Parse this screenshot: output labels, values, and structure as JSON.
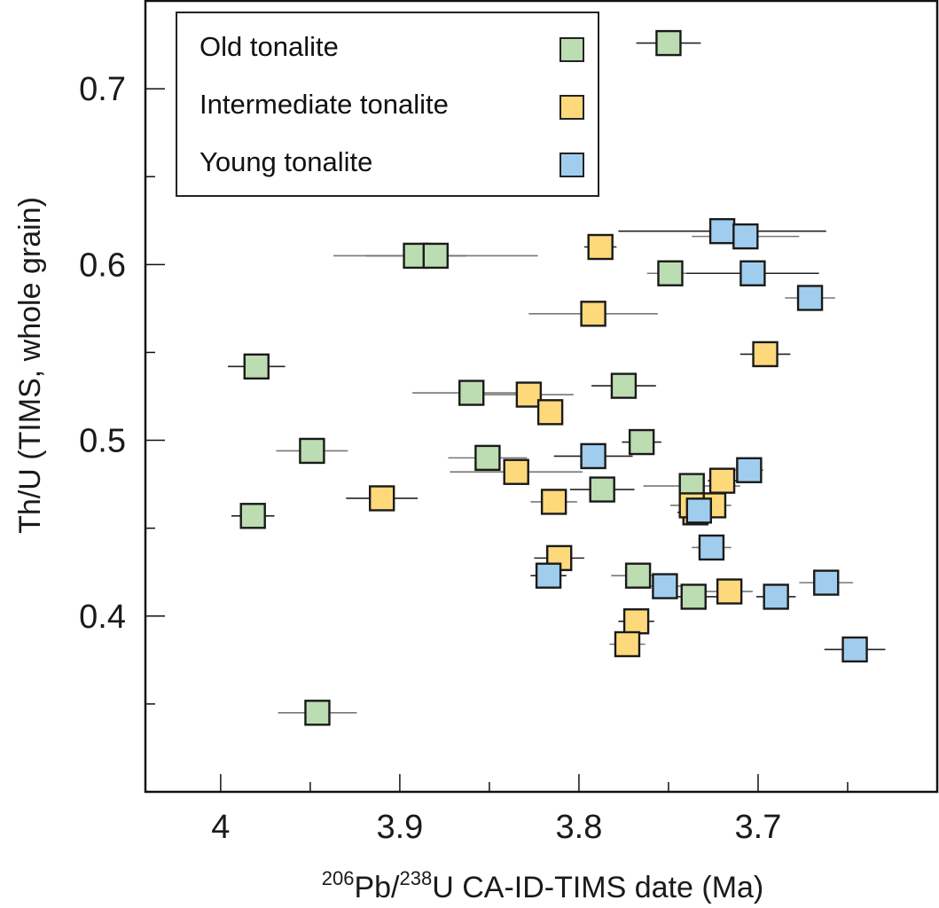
{
  "chart_data": {
    "type": "scatter",
    "title": "",
    "xlabel": {
      "sup1": "206",
      "part1": "Pb/",
      "sup2": "238",
      "part2": "U CA-ID-TIMS date (Ma)"
    },
    "ylabel": "Th/U (TIMS, whole grain)",
    "xlim": [
      4.042,
      3.6
    ],
    "ylim": [
      0.3,
      0.75
    ],
    "x_reversed": true,
    "grid": false,
    "x_ticks": [
      {
        "value": 4.0,
        "label": "4"
      },
      {
        "value": 3.9,
        "label": "3.9"
      },
      {
        "value": 3.8,
        "label": "3.8"
      },
      {
        "value": 3.7,
        "label": "3.7"
      }
    ],
    "x_minor_ticks": [
      3.95,
      3.85,
      3.75,
      3.65
    ],
    "y_ticks": [
      {
        "value": 0.7,
        "label": "0.7"
      },
      {
        "value": 0.6,
        "label": "0.6"
      },
      {
        "value": 0.5,
        "label": "0.5"
      },
      {
        "value": 0.4,
        "label": "0.4"
      }
    ],
    "y_minor_ticks": [
      0.65,
      0.55,
      0.45,
      0.35
    ],
    "legend_position": "top-left",
    "series": [
      {
        "name": "Old tonalite",
        "color": "#bcdcb1",
        "points": [
          {
            "x": 3.891,
            "y": 0.605,
            "xerr": 0.028
          },
          {
            "x": 3.88,
            "y": 0.605,
            "xerr": 0.057
          },
          {
            "x": 3.75,
            "y": 0.726,
            "xerr": 0.018
          },
          {
            "x": 3.749,
            "y": 0.595,
            "xerr": 0.013
          },
          {
            "x": 3.98,
            "y": 0.542,
            "xerr": 0.016
          },
          {
            "x": 3.86,
            "y": 0.527,
            "xerr": 0.033
          },
          {
            "x": 3.775,
            "y": 0.531,
            "xerr": 0.018
          },
          {
            "x": 3.949,
            "y": 0.494,
            "xerr": 0.02
          },
          {
            "x": 3.765,
            "y": 0.499,
            "xerr": 0.011
          },
          {
            "x": 3.851,
            "y": 0.49,
            "xerr": 0.022
          },
          {
            "x": 3.787,
            "y": 0.472,
            "xerr": 0.018
          },
          {
            "x": 3.737,
            "y": 0.474,
            "xerr": 0.027
          },
          {
            "x": 3.982,
            "y": 0.457,
            "xerr": 0.012
          },
          {
            "x": 3.767,
            "y": 0.423,
            "xerr": 0.015
          },
          {
            "x": 3.736,
            "y": 0.411,
            "xerr": 0.017
          },
          {
            "x": 3.946,
            "y": 0.345,
            "xerr": 0.022
          }
        ]
      },
      {
        "name": "Intermediate tonalite",
        "color": "#fed97b",
        "points": [
          {
            "x": 3.788,
            "y": 0.61,
            "xerr": 0.009
          },
          {
            "x": 3.792,
            "y": 0.572,
            "xerr": 0.036
          },
          {
            "x": 3.696,
            "y": 0.549,
            "xerr": 0.014
          },
          {
            "x": 3.828,
            "y": 0.526,
            "xerr": 0.025
          },
          {
            "x": 3.816,
            "y": 0.516,
            "xerr": 0.005
          },
          {
            "x": 3.835,
            "y": 0.482,
            "xerr": 0.037
          },
          {
            "x": 3.91,
            "y": 0.467,
            "xerr": 0.02
          },
          {
            "x": 3.814,
            "y": 0.465,
            "xerr": 0.013
          },
          {
            "x": 3.72,
            "y": 0.477,
            "xerr": 0.008
          },
          {
            "x": 3.725,
            "y": 0.463,
            "xerr": 0.01
          },
          {
            "x": 3.735,
            "y": 0.459,
            "xerr": 0.01
          },
          {
            "x": 3.737,
            "y": 0.463,
            "xerr": 0.012
          },
          {
            "x": 3.811,
            "y": 0.433,
            "xerr": 0.014
          },
          {
            "x": 3.716,
            "y": 0.414,
            "xerr": 0.013
          },
          {
            "x": 3.768,
            "y": 0.397,
            "xerr": 0.01
          },
          {
            "x": 3.773,
            "y": 0.384,
            "xerr": 0.01
          }
        ]
      },
      {
        "name": "Young tonalite",
        "color": "#a0cdee",
        "points": [
          {
            "x": 3.72,
            "y": 0.619,
            "xerr": 0.058
          },
          {
            "x": 3.707,
            "y": 0.616,
            "xerr": 0.03
          },
          {
            "x": 3.703,
            "y": 0.595,
            "xerr": 0.037
          },
          {
            "x": 3.671,
            "y": 0.581,
            "xerr": 0.014
          },
          {
            "x": 3.792,
            "y": 0.491,
            "xerr": 0.022
          },
          {
            "x": 3.705,
            "y": 0.483,
            "xerr": 0.008
          },
          {
            "x": 3.733,
            "y": 0.46,
            "xerr": 0.01
          },
          {
            "x": 3.726,
            "y": 0.439,
            "xerr": 0.011
          },
          {
            "x": 3.817,
            "y": 0.423,
            "xerr": 0.01
          },
          {
            "x": 3.752,
            "y": 0.417,
            "xerr": 0.009
          },
          {
            "x": 3.69,
            "y": 0.411,
            "xerr": 0.011
          },
          {
            "x": 3.662,
            "y": 0.419,
            "xerr": 0.015
          },
          {
            "x": 3.646,
            "y": 0.381,
            "xerr": 0.017
          }
        ]
      }
    ]
  }
}
